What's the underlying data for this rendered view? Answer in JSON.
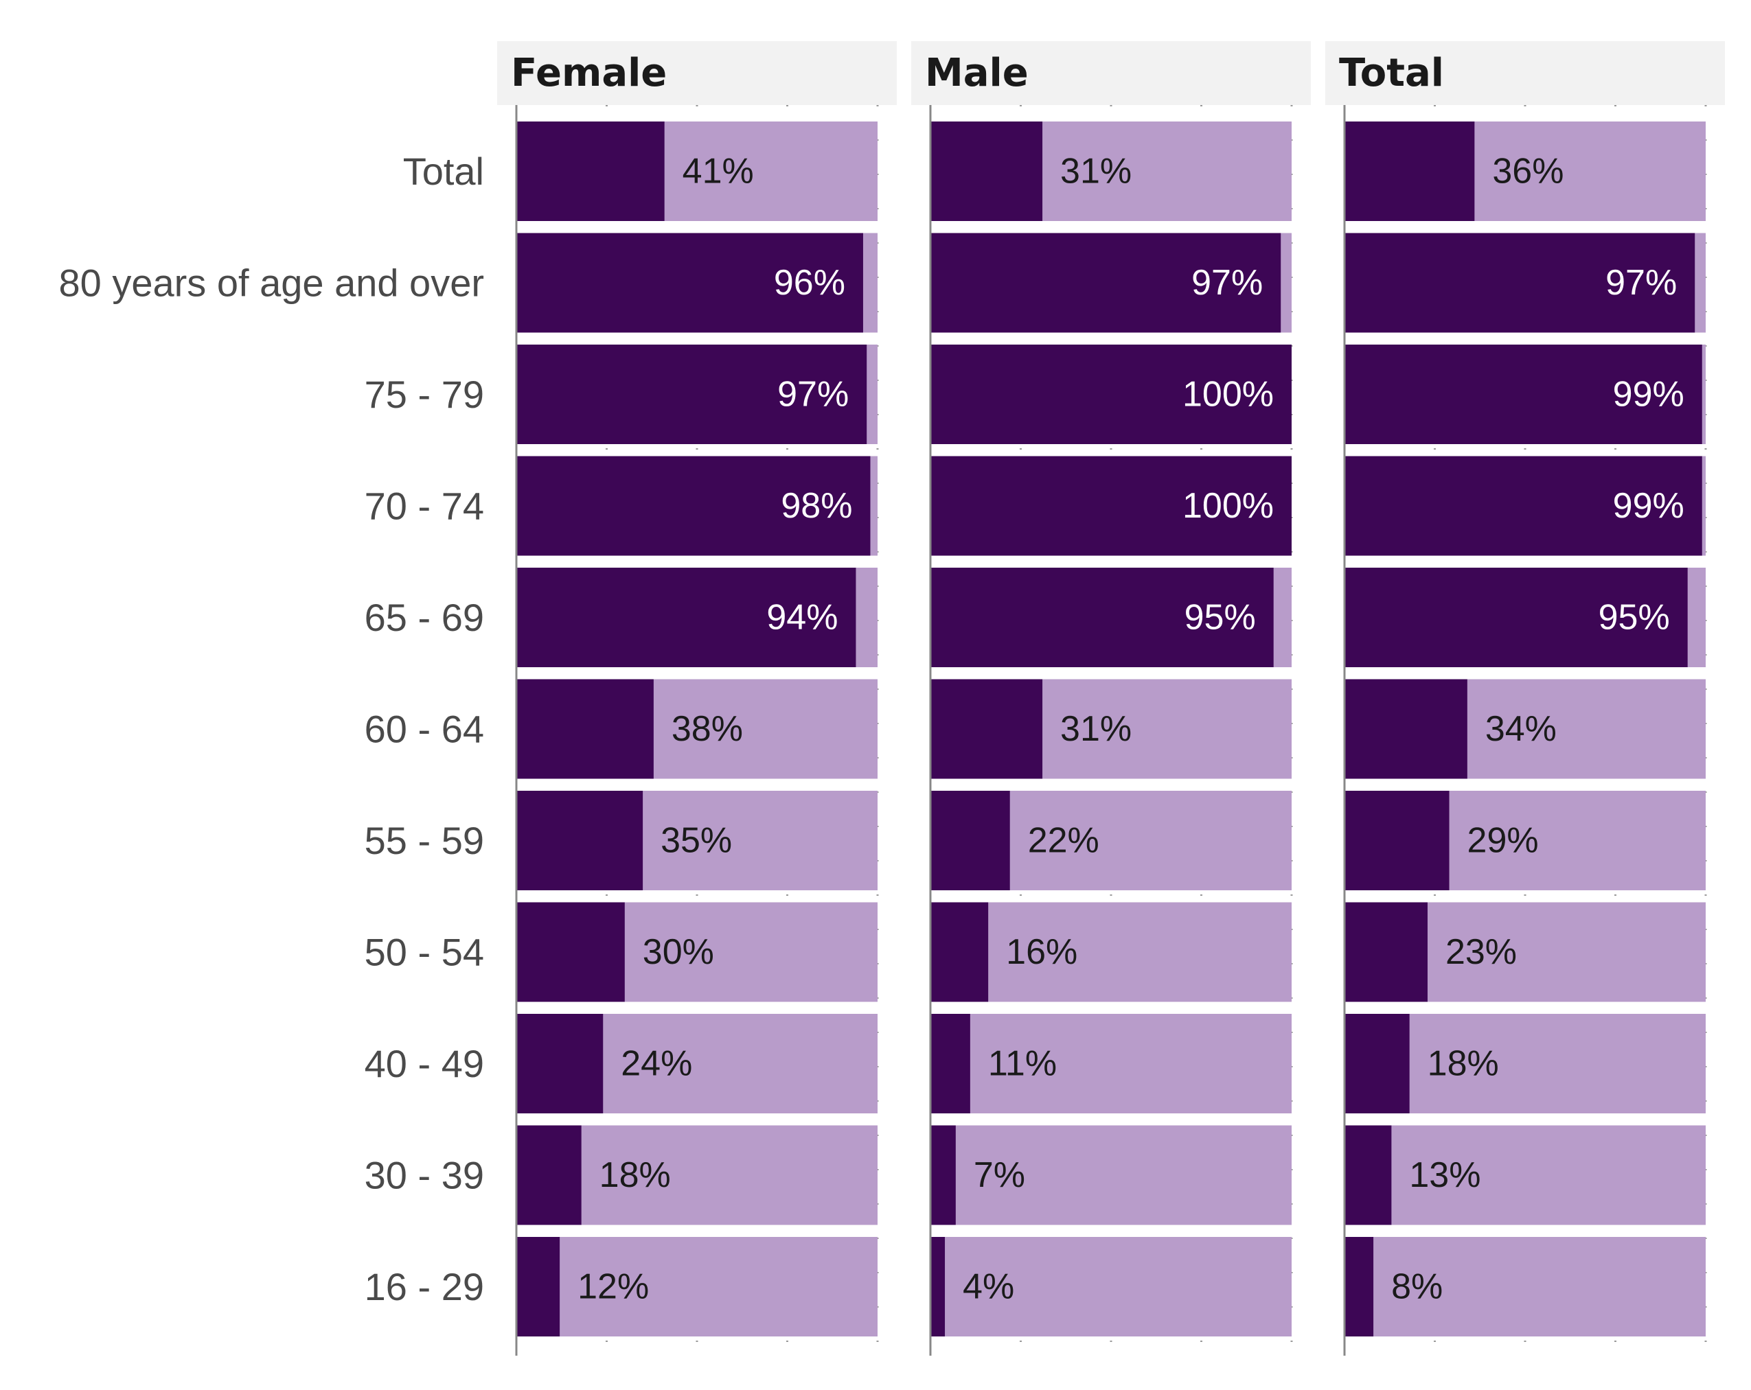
{
  "chart_data": {
    "type": "bar",
    "orientation": "horizontal",
    "stacked": true,
    "categories": [
      "Total",
      "80 years of age and over",
      "75 - 79",
      "70 - 74",
      "65 - 69",
      "60 - 64",
      "55 - 59",
      "50 - 54",
      "40 - 49",
      "30 - 39",
      "16 - 29"
    ],
    "panels": [
      {
        "title": "Female",
        "values": [
          41,
          96,
          97,
          98,
          94,
          38,
          35,
          30,
          24,
          18,
          12
        ],
        "labels": [
          "41%",
          "96%",
          "97%",
          "98%",
          "94%",
          "38%",
          "35%",
          "30%",
          "24%",
          "18%",
          "12%"
        ]
      },
      {
        "title": "Male",
        "values": [
          31,
          97,
          100,
          100,
          95,
          31,
          22,
          16,
          11,
          7,
          4
        ],
        "labels": [
          "31%",
          "97%",
          "100%",
          "100%",
          "95%",
          "31%",
          "22%",
          "16%",
          "11%",
          "7%",
          "4%"
        ]
      },
      {
        "title": "Total",
        "values": [
          36,
          97,
          99,
          99,
          95,
          34,
          29,
          23,
          18,
          13,
          8
        ],
        "labels": [
          "36%",
          "97%",
          "99%",
          "99%",
          "95%",
          "34%",
          "29%",
          "23%",
          "18%",
          "13%",
          "8%"
        ]
      }
    ],
    "xlim": [
      0,
      100
    ],
    "grid": true,
    "colors": {
      "value": "#3d0655",
      "remainder": "#b89cca",
      "panel_header": "#f2f2f2",
      "grid": "#9a9a9a",
      "axis": "#888888"
    }
  }
}
